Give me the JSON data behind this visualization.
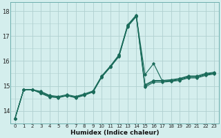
{
  "xlabel": "Humidex (Indice chaleur)",
  "background_color": "#d4eeed",
  "grid_color": "#b0d0d0",
  "line_color": "#1a6b5a",
  "xlim": [
    -0.5,
    23.5
  ],
  "ylim": [
    13.5,
    18.35
  ],
  "yticks": [
    14,
    15,
    16,
    17,
    18
  ],
  "xticks": [
    0,
    1,
    2,
    3,
    4,
    5,
    6,
    7,
    8,
    9,
    10,
    11,
    12,
    13,
    14,
    15,
    16,
    17,
    18,
    19,
    20,
    21,
    22,
    23
  ],
  "series": [
    [
      13.7,
      14.85,
      14.85,
      14.7,
      14.55,
      14.55,
      14.6,
      14.55,
      14.65,
      14.75,
      15.35,
      15.75,
      16.2,
      17.4,
      17.8,
      15.45,
      15.9,
      15.2,
      15.2,
      15.25,
      15.35,
      15.35,
      15.45,
      15.5
    ],
    [
      13.7,
      14.85,
      14.85,
      14.75,
      14.6,
      14.55,
      14.62,
      14.55,
      14.65,
      14.78,
      15.38,
      15.78,
      16.22,
      17.42,
      17.82,
      15.0,
      15.2,
      15.2,
      15.22,
      15.28,
      15.38,
      15.38,
      15.48,
      15.52
    ],
    [
      13.7,
      14.85,
      14.85,
      14.78,
      14.62,
      14.58,
      14.65,
      14.58,
      14.68,
      14.8,
      15.4,
      15.8,
      16.25,
      17.45,
      17.85,
      15.05,
      15.22,
      15.22,
      15.25,
      15.3,
      15.4,
      15.4,
      15.5,
      15.55
    ],
    [
      13.7,
      14.85,
      14.85,
      14.72,
      14.58,
      14.52,
      14.62,
      14.52,
      14.62,
      14.76,
      15.36,
      15.76,
      16.18,
      17.38,
      17.78,
      14.95,
      15.15,
      15.15,
      15.18,
      15.22,
      15.32,
      15.32,
      15.42,
      15.48
    ]
  ]
}
